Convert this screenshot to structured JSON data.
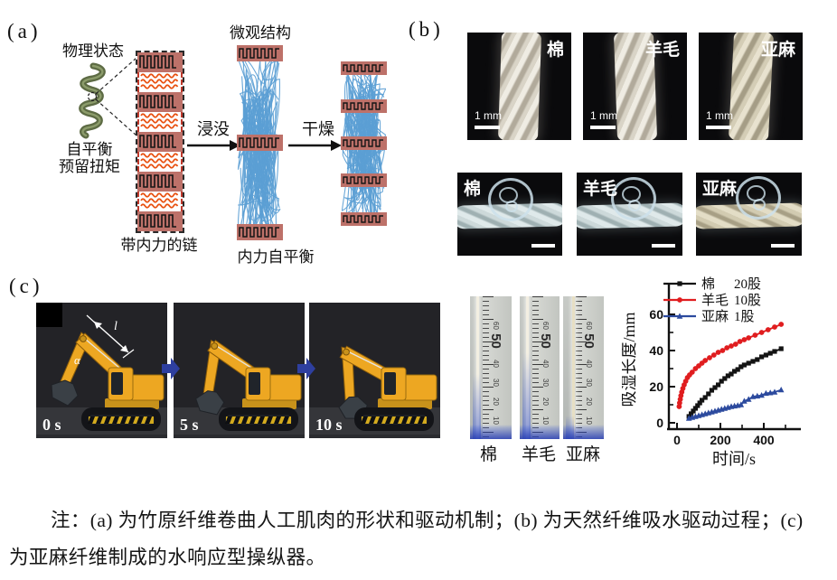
{
  "panel_a": {
    "label": "(a)",
    "physical_state_label": "物理状态",
    "self_balance_label": "自平衡",
    "reserved_torque_label": "预留扭矩",
    "chain_label": "带内力的链",
    "microstructure_label": "微观结构",
    "immersion_label": "浸没",
    "drying_label": "干燥",
    "internal_balance_label": "内力自平衡",
    "colors": {
      "band_pink": "#bd7169",
      "scribble_orange": "#e8500f",
      "fiber_blue": "#5b9fd4",
      "helix_green": "#5d6b44"
    }
  },
  "panel_b": {
    "label": "(b)",
    "top_row": [
      {
        "name": "棉",
        "scale_label": "1 mm"
      },
      {
        "name": "羊毛",
        "scale_label": "1 mm"
      },
      {
        "name": "亚麻",
        "scale_label": "1 mm"
      }
    ],
    "bottom_row": [
      {
        "name": "棉"
      },
      {
        "name": "羊毛"
      },
      {
        "name": "亚麻"
      }
    ]
  },
  "panel_c": {
    "label": "(c)",
    "frames": [
      {
        "time": "0 s"
      },
      {
        "time": "5 s"
      },
      {
        "time": "10 s"
      }
    ],
    "annotations": {
      "length": "l",
      "angle": "α"
    },
    "rulers": {
      "labels": [
        "棉",
        "羊毛",
        "亚麻"
      ],
      "tick_numbers": [
        "10",
        "20",
        "30",
        "40",
        "50",
        "60"
      ],
      "highlight_number": "50"
    }
  },
  "chart_data": {
    "type": "line",
    "title": "",
    "xlabel": "时间/s",
    "ylabel": "吸湿长度/mm",
    "xlim": [
      -20,
      560
    ],
    "ylim": [
      -4,
      68
    ],
    "xticks": [
      0,
      200,
      400
    ],
    "xticks_minor": [
      100,
      300,
      500
    ],
    "yticks": [
      0,
      20,
      40,
      60
    ],
    "yticks_minor": [
      10,
      30,
      50
    ],
    "grid": false,
    "legend_position": "top-left",
    "series": [
      {
        "name": "棉",
        "strands": "20股",
        "color": "#131313",
        "marker": "square",
        "x": [
          55,
          65,
          75,
          85,
          95,
          105,
          115,
          130,
          145,
          160,
          175,
          190,
          205,
          220,
          235,
          250,
          265,
          280,
          295,
          310,
          330,
          350,
          370,
          390,
          410,
          430,
          450,
          480
        ],
        "y": [
          3.5,
          5,
          6.5,
          8,
          9.5,
          11,
          12.5,
          14,
          16,
          18,
          19.5,
          21,
          23,
          24.5,
          26,
          27,
          28.5,
          29.5,
          31,
          32,
          33,
          34,
          35,
          36.5,
          37.5,
          38.5,
          39.5,
          41
        ]
      },
      {
        "name": "羊毛",
        "strands": "10股",
        "color": "#e01d1f",
        "marker": "circle",
        "x": [
          10,
          12,
          15,
          18,
          22,
          27,
          33,
          40,
          48,
          58,
          70,
          85,
          100,
          115,
          130,
          150,
          170,
          190,
          210,
          230,
          250,
          270,
          290,
          310,
          330,
          360,
          390,
          420,
          450,
          480
        ],
        "y": [
          9,
          11,
          13,
          15,
          17,
          19,
          21,
          23,
          25,
          26.5,
          28,
          30,
          31.5,
          33,
          34.5,
          36,
          37.5,
          39,
          40,
          41.5,
          42.5,
          43.5,
          45,
          46,
          47,
          48.5,
          50,
          51.5,
          53,
          54.5
        ]
      },
      {
        "name": "亚麻",
        "strands": "1股",
        "color": "#2c4a9e",
        "marker": "triangle",
        "x": [
          55,
          70,
          85,
          100,
          115,
          130,
          145,
          160,
          175,
          190,
          205,
          220,
          235,
          250,
          265,
          280,
          295,
          310,
          330,
          350,
          370,
          390,
          410,
          430,
          450,
          480
        ],
        "y": [
          2.5,
          3,
          3.5,
          4,
          4.5,
          5,
          5.5,
          6,
          6.5,
          7,
          7.5,
          8,
          8.5,
          9,
          9.3,
          9.6,
          10,
          12,
          13,
          14.5,
          14.8,
          15.2,
          16.3,
          16.6,
          17,
          18.2
        ]
      }
    ]
  },
  "caption": {
    "text": "注：(a) 为竹原纤维卷曲人工肌肉的形状和驱动机制；(b) 为天然纤维吸水驱动过程；(c) 为亚麻纤维制成的水响应型操纵器。"
  }
}
